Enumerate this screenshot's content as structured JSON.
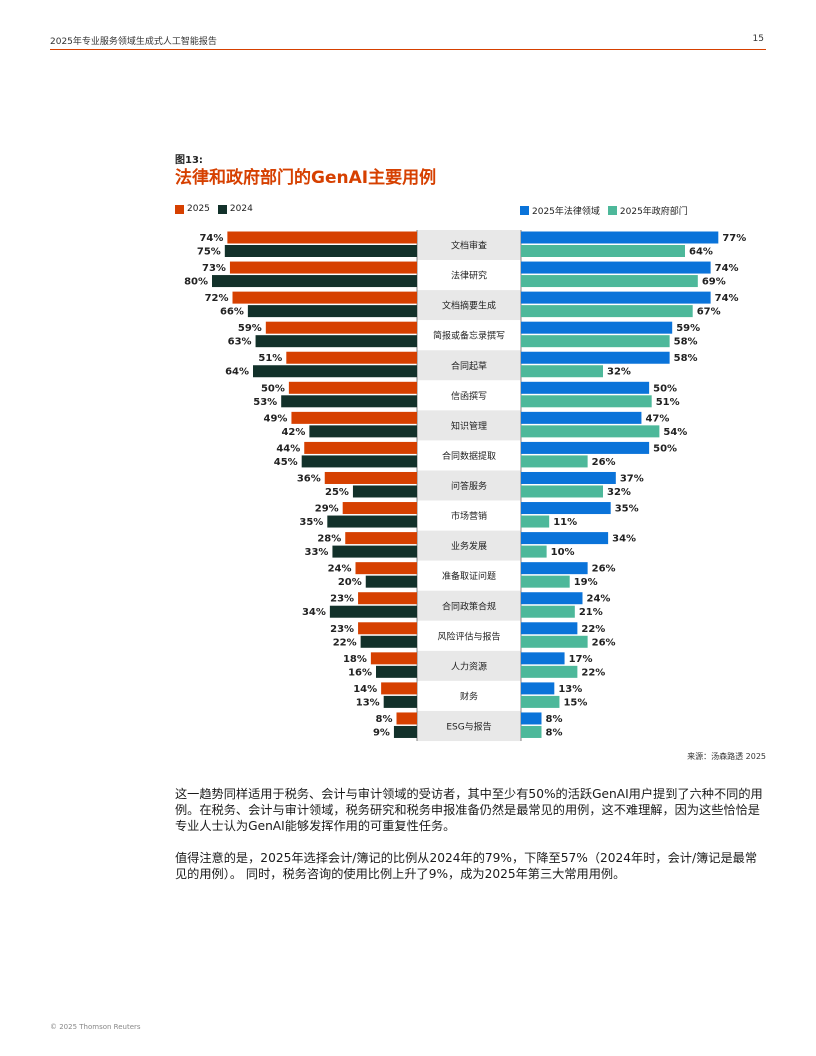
{
  "header": {
    "title": "2025年专业服务领域生成式人工智能报告",
    "page_number": "15"
  },
  "figure": {
    "label": "图13:",
    "title": "法律和政府部门的GenAI主要用例"
  },
  "colors": {
    "c2025": "#d64000",
    "c2024": "#12312a",
    "legal": "#0a73d9",
    "gov": "#4db89a",
    "center_alt": "#e8e8e8"
  },
  "legend": {
    "left": [
      "2025",
      "2024"
    ],
    "right": [
      "2025年法律领域",
      "2025年政府部门"
    ]
  },
  "chart_data": {
    "type": "bar",
    "title": "法律和政府部门的GenAI主要用例",
    "categories": [
      "文档审查",
      "法律研究",
      "文档摘要生成",
      "简报或备忘录撰写",
      "合同起草",
      "信函撰写",
      "知识管理",
      "合同数据提取",
      "问答服务",
      "市场营销",
      "业务发展",
      "准备取证问题",
      "合同政策合规",
      "风险评估与报告",
      "人力资源",
      "财务",
      "ESG与报告"
    ],
    "series": [
      {
        "name": "2025",
        "side": "left",
        "values": [
          74,
          73,
          72,
          59,
          51,
          50,
          49,
          44,
          36,
          29,
          28,
          24,
          23,
          23,
          18,
          14,
          8
        ]
      },
      {
        "name": "2024",
        "side": "left",
        "values": [
          75,
          80,
          66,
          63,
          64,
          53,
          42,
          45,
          25,
          35,
          33,
          20,
          34,
          22,
          16,
          13,
          9
        ]
      },
      {
        "name": "2025年法律领域",
        "side": "right",
        "values": [
          77,
          74,
          74,
          59,
          58,
          50,
          47,
          50,
          37,
          35,
          34,
          26,
          24,
          22,
          17,
          13,
          8
        ]
      },
      {
        "name": "2025年政府部门",
        "side": "right",
        "values": [
          64,
          69,
          67,
          58,
          32,
          51,
          54,
          26,
          32,
          11,
          10,
          19,
          21,
          26,
          22,
          15,
          8
        ]
      }
    ],
    "unit": "%",
    "xlim": [
      0,
      80
    ]
  },
  "source": "来源：汤森路透 2025",
  "body": {
    "p1": "这一趋势同样适用于税务、会计与审计领域的受访者，其中至少有50%的活跃GenAI用户提到了六种不同的用例。在税务、会计与审计领域，税务研究和税务申报准备仍然是最常见的用例，这不难理解，因为这些恰恰是专业人士认为GenAI能够发挥作用的可重复性任务。",
    "p2": "值得注意的是，2025年选择会计/簿记的比例从2024年的79%，下降至57%（2024年时，会计/簿记是最常见的用例）。 同时，税务咨询的使用比例上升了9%，成为2025年第三大常用用例。"
  },
  "footer": "© 2025 Thomson Reuters"
}
